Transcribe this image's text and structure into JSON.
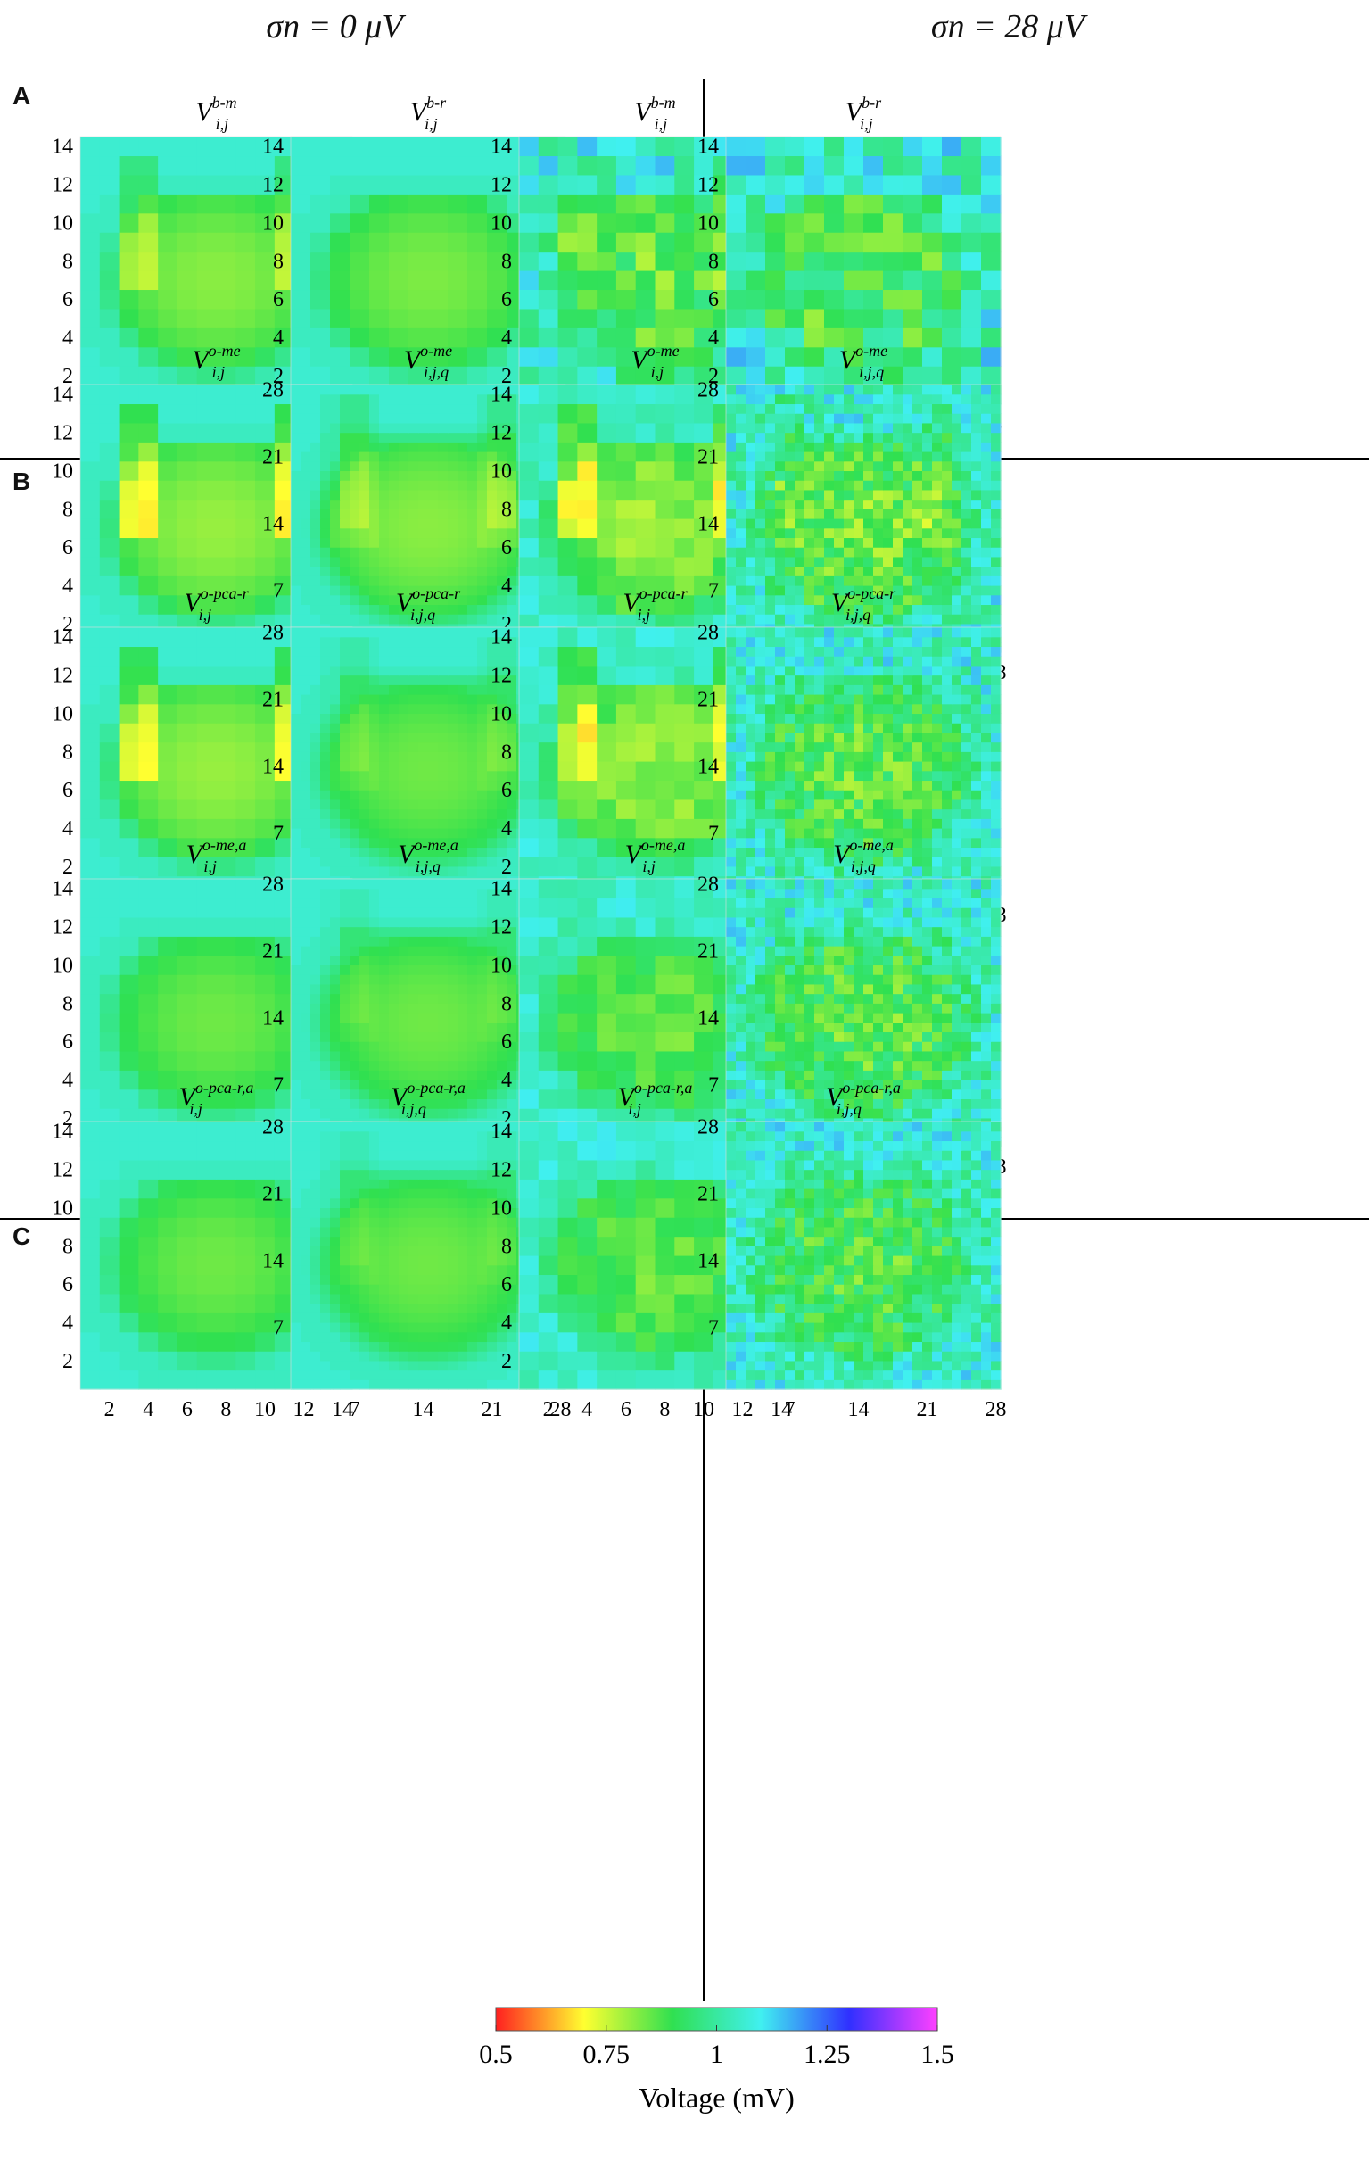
{
  "column_headers": [
    "σn = 0 μV",
    "σn = 28 μV"
  ],
  "sections": [
    {
      "label": "A",
      "panel_labels": [
        "V_{i,j}^{b-m}",
        "V_{i,j}^{b-r}"
      ]
    },
    {
      "label": "B",
      "panel_labels": [
        "V_{i,j}^{o-me}",
        "V_{i,j,q}^{o-me}",
        "V_{i,j}^{o-pca-r}",
        "V_{i,j,q}^{o-pca-r}"
      ]
    },
    {
      "label": "C",
      "panel_labels": [
        "V_{i,j}^{o-me,a}",
        "V_{i,j,q}^{o-me,a}",
        "V_{i,j}^{o-pca-r,a}",
        "V_{i,j,q}^{o-pca-r,a}"
      ]
    }
  ],
  "colorbar": {
    "label": "Voltage (mV)",
    "ticks": [
      "0.5",
      "0.75",
      "1",
      "1.25",
      "1.5"
    ],
    "range": [
      0.5,
      1.5
    ],
    "colors": [
      "#ff2020",
      "#ffff30",
      "#30e050",
      "#40f0f0",
      "#3030ff",
      "#ff40ff"
    ]
  },
  "chart_data": [
    {
      "type": "heatmap",
      "section": "A",
      "title": "V_{i,j}^{b-m}",
      "noise": "σn = 0 μV",
      "grid": 14,
      "xticks": [
        2,
        4,
        6,
        8,
        10,
        12,
        14
      ],
      "yticks": [
        2,
        4,
        6,
        8,
        10,
        12,
        14
      ],
      "vrange": [
        0.5,
        1.5
      ],
      "pattern": "bowl",
      "strength": 0.95,
      "lanes": 0.6,
      "noise_amp": 0,
      "seed": 11
    },
    {
      "type": "heatmap",
      "section": "A",
      "title": "V_{i,j}^{b-r}",
      "noise": "σn = 0 μV",
      "grid": 14,
      "xticks": [
        2,
        4,
        6,
        8,
        10,
        12,
        14
      ],
      "yticks": [
        2,
        4,
        6,
        8,
        10,
        12,
        14
      ],
      "vrange": [
        0.5,
        1.5
      ],
      "pattern": "bowl",
      "strength": 0.9,
      "lanes": 0,
      "noise_amp": 0,
      "seed": 12
    },
    {
      "type": "heatmap",
      "section": "A",
      "title": "V_{i,j}^{b-m}",
      "noise": "σn = 28 μV",
      "grid": 14,
      "xticks": [
        2,
        4,
        6,
        8,
        10,
        12,
        14
      ],
      "yticks": [
        2,
        4,
        6,
        8,
        10,
        12,
        14
      ],
      "vrange": [
        0.5,
        1.5
      ],
      "pattern": "bowl",
      "strength": 0.75,
      "lanes": 0.3,
      "noise_amp": 0.06,
      "seed": 13
    },
    {
      "type": "heatmap",
      "section": "A",
      "title": "V_{i,j}^{b-r}",
      "noise": "σn = 28 μV",
      "grid": 14,
      "xticks": [
        2,
        4,
        6,
        8,
        10,
        12,
        14
      ],
      "yticks": [
        2,
        4,
        6,
        8,
        10,
        12,
        14
      ],
      "vrange": [
        0.5,
        1.5
      ],
      "pattern": "bowl",
      "strength": 0.7,
      "lanes": 0,
      "noise_amp": 0.07,
      "seed": 14
    },
    {
      "type": "heatmap",
      "section": "B",
      "title": "V_{i,j}^{o-me}",
      "noise": "σn = 0 μV",
      "grid": 14,
      "xticks": [
        2,
        4,
        6,
        8,
        10,
        12,
        14
      ],
      "yticks": [
        2,
        4,
        6,
        8,
        10,
        12,
        14
      ],
      "vrange": [
        0.5,
        1.5
      ],
      "pattern": "bowl",
      "strength": 1.0,
      "lanes": 1.0,
      "noise_amp": 0,
      "seed": 21
    },
    {
      "type": "heatmap",
      "section": "B",
      "title": "V_{i,j,q}^{o-me}",
      "noise": "σn = 0 μV",
      "grid": 28,
      "xticks": [
        7,
        14,
        21,
        28
      ],
      "yticks": [
        7,
        14,
        21,
        28
      ],
      "vrange": [
        0.5,
        1.5
      ],
      "pattern": "bowl",
      "strength": 0.95,
      "lanes": 0.5,
      "noise_amp": 0,
      "seed": 22
    },
    {
      "type": "heatmap",
      "section": "B",
      "title": "V_{i,j}^{o-me}",
      "noise": "σn = 28 μV",
      "grid": 14,
      "xticks": [
        2,
        4,
        6,
        8,
        10,
        12,
        14
      ],
      "yticks": [
        2,
        4,
        6,
        8,
        10,
        12,
        14
      ],
      "vrange": [
        0.5,
        1.5
      ],
      "pattern": "bowl",
      "strength": 1.0,
      "lanes": 1.0,
      "noise_amp": 0.03,
      "seed": 23
    },
    {
      "type": "heatmap",
      "section": "B",
      "title": "V_{i,j,q}^{o-me}",
      "noise": "σn = 28 μV",
      "grid": 28,
      "xticks": [
        7,
        14,
        21,
        28
      ],
      "yticks": [
        7,
        14,
        21,
        28
      ],
      "vrange": [
        0.5,
        1.5
      ],
      "pattern": "bowl",
      "strength": 0.85,
      "lanes": 0.3,
      "noise_amp": 0.06,
      "seed": 24
    },
    {
      "type": "heatmap",
      "section": "B",
      "title": "V_{i,j}^{o-pca-r}",
      "noise": "σn = 0 μV",
      "grid": 14,
      "xticks": [
        2,
        4,
        6,
        8,
        10,
        12,
        14
      ],
      "yticks": [
        2,
        4,
        6,
        8,
        10,
        12,
        14
      ],
      "vrange": [
        0.5,
        1.5
      ],
      "pattern": "bowl",
      "strength": 1.0,
      "lanes": 0.9,
      "noise_amp": 0,
      "seed": 31
    },
    {
      "type": "heatmap",
      "section": "B",
      "title": "V_{i,j,q}^{o-pca-r}",
      "noise": "σn = 0 μV",
      "grid": 28,
      "xticks": [
        7,
        14,
        21,
        28
      ],
      "yticks": [
        7,
        14,
        21,
        28
      ],
      "vrange": [
        0.5,
        1.5
      ],
      "pattern": "bowl",
      "strength": 0.85,
      "lanes": 0.3,
      "noise_amp": 0,
      "seed": 32
    },
    {
      "type": "heatmap",
      "section": "B",
      "title": "V_{i,j}^{o-pca-r}",
      "noise": "σn = 28 μV",
      "grid": 14,
      "xticks": [
        2,
        4,
        6,
        8,
        10,
        12,
        14
      ],
      "yticks": [
        2,
        4,
        6,
        8,
        10,
        12,
        14
      ],
      "vrange": [
        0.5,
        1.5
      ],
      "pattern": "bowl",
      "strength": 1.0,
      "lanes": 0.9,
      "noise_amp": 0.03,
      "seed": 33
    },
    {
      "type": "heatmap",
      "section": "B",
      "title": "V_{i,j,q}^{o-pca-r}",
      "noise": "σn = 28 μV",
      "grid": 28,
      "xticks": [
        7,
        14,
        21,
        28
      ],
      "yticks": [
        7,
        14,
        21,
        28
      ],
      "vrange": [
        0.5,
        1.5
      ],
      "pattern": "bowl",
      "strength": 0.75,
      "lanes": 0,
      "noise_amp": 0.06,
      "seed": 34
    },
    {
      "type": "heatmap",
      "section": "C",
      "title": "V_{i,j}^{o-me,a}",
      "noise": "σn = 0 μV",
      "grid": 14,
      "xticks": [
        2,
        4,
        6,
        8,
        10,
        12,
        14
      ],
      "yticks": [
        2,
        4,
        6,
        8,
        10,
        12,
        14
      ],
      "vrange": [
        0.5,
        1.5
      ],
      "pattern": "bowl",
      "strength": 0.85,
      "lanes": 0,
      "noise_amp": 0,
      "seed": 41
    },
    {
      "type": "heatmap",
      "section": "C",
      "title": "V_{i,j,q}^{o-me,a}",
      "noise": "σn = 0 μV",
      "grid": 28,
      "xticks": [
        7,
        14,
        21,
        28
      ],
      "yticks": [
        7,
        14,
        21,
        28
      ],
      "vrange": [
        0.5,
        1.5
      ],
      "pattern": "bowl",
      "strength": 0.85,
      "lanes": 0.2,
      "noise_amp": 0,
      "seed": 42
    },
    {
      "type": "heatmap",
      "section": "C",
      "title": "V_{i,j}^{o-me,a}",
      "noise": "σn = 28 μV",
      "grid": 14,
      "xticks": [
        2,
        4,
        6,
        8,
        10,
        12,
        14
      ],
      "yticks": [
        2,
        4,
        6,
        8,
        10,
        12,
        14
      ],
      "vrange": [
        0.5,
        1.5
      ],
      "pattern": "bowl",
      "strength": 0.8,
      "lanes": 0,
      "noise_amp": 0.03,
      "seed": 43
    },
    {
      "type": "heatmap",
      "section": "C",
      "title": "V_{i,j,q}^{o-me,a}",
      "noise": "σn = 28 μV",
      "grid": 28,
      "xticks": [
        7,
        14,
        21,
        28
      ],
      "yticks": [
        7,
        14,
        21,
        28
      ],
      "vrange": [
        0.5,
        1.5
      ],
      "pattern": "bowl",
      "strength": 0.75,
      "lanes": 0,
      "noise_amp": 0.06,
      "seed": 44
    },
    {
      "type": "heatmap",
      "section": "C",
      "title": "V_{i,j}^{o-pca-r,a}",
      "noise": "σn = 0 μV",
      "grid": 14,
      "xticks": [
        2,
        4,
        6,
        8,
        10,
        12,
        14
      ],
      "yticks": [
        2,
        4,
        6,
        8,
        10,
        12,
        14
      ],
      "vrange": [
        0.5,
        1.5
      ],
      "pattern": "bowl",
      "strength": 0.85,
      "lanes": 0,
      "noise_amp": 0,
      "seed": 51
    },
    {
      "type": "heatmap",
      "section": "C",
      "title": "V_{i,j,q}^{o-pca-r,a}",
      "noise": "σn = 0 μV",
      "grid": 28,
      "xticks": [
        7,
        14,
        21,
        28
      ],
      "yticks": [
        7,
        14,
        21,
        28
      ],
      "vrange": [
        0.5,
        1.5
      ],
      "pattern": "bowl",
      "strength": 0.85,
      "lanes": 0.2,
      "noise_amp": 0,
      "seed": 52
    },
    {
      "type": "heatmap",
      "section": "C",
      "title": "V_{i,j}^{o-pca-r,a}",
      "noise": "σn = 28 μV",
      "grid": 14,
      "xticks": [
        2,
        4,
        6,
        8,
        10,
        12,
        14
      ],
      "yticks": [
        2,
        4,
        6,
        8,
        10,
        12,
        14
      ],
      "vrange": [
        0.5,
        1.5
      ],
      "pattern": "bowl",
      "strength": 0.8,
      "lanes": 0,
      "noise_amp": 0.03,
      "seed": 53
    },
    {
      "type": "heatmap",
      "section": "C",
      "title": "V_{i,j,q}^{o-pca-r,a}",
      "noise": "σn = 28 μV",
      "grid": 28,
      "xticks": [
        7,
        14,
        21,
        28
      ],
      "yticks": [
        7,
        14,
        21,
        28
      ],
      "vrange": [
        0.5,
        1.5
      ],
      "pattern": "bowl",
      "strength": 0.7,
      "lanes": 0,
      "noise_amp": 0.06,
      "seed": 54
    }
  ]
}
